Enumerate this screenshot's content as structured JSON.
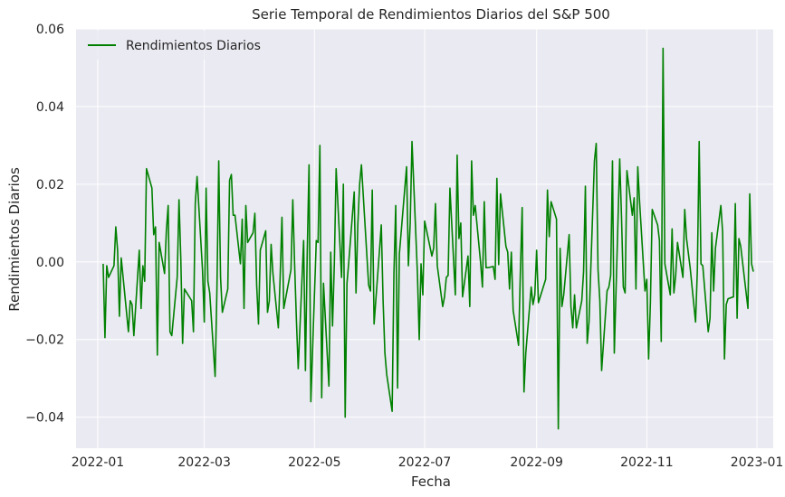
{
  "chart_data": {
    "type": "line",
    "title": "Serie Temporal de Rendimientos Diarios del S&P 500",
    "xlabel": "Fecha",
    "ylabel": "Rendimientos Diarios",
    "xlim": [
      "2021-12-20",
      "2023-01-10"
    ],
    "ylim": [
      -0.048,
      0.06
    ],
    "x_ticks": [
      "2022-01",
      "2022-03",
      "2022-05",
      "2022-07",
      "2022-09",
      "2022-11",
      "2023-01"
    ],
    "x_tick_dates": [
      "2022-01-01",
      "2022-03-01",
      "2022-05-01",
      "2022-07-01",
      "2022-09-01",
      "2022-11-01",
      "2023-01-01"
    ],
    "y_ticks": [
      -0.04,
      -0.02,
      0.0,
      0.02,
      0.04,
      0.06
    ],
    "y_tick_labels": [
      "−0.04",
      "−0.02",
      "0.00",
      "0.02",
      "0.04",
      "0.06"
    ],
    "grid": true,
    "legend_position": "top-left",
    "background_color": "#eaeaf2",
    "grid_color": "#ffffff",
    "series": [
      {
        "name": "Rendimientos Diarios",
        "color": "#008000",
        "points": [
          [
            "2022-01-04",
            -0.0005
          ],
          [
            "2022-01-05",
            -0.0195
          ],
          [
            "2022-01-06",
            -0.001
          ],
          [
            "2022-01-07",
            -0.004
          ],
          [
            "2022-01-10",
            -0.001
          ],
          [
            "2022-01-11",
            0.009
          ],
          [
            "2022-01-12",
            0.003
          ],
          [
            "2022-01-13",
            -0.014
          ],
          [
            "2022-01-14",
            0.001
          ],
          [
            "2022-01-18",
            -0.018
          ],
          [
            "2022-01-19",
            -0.01
          ],
          [
            "2022-01-20",
            -0.011
          ],
          [
            "2022-01-21",
            -0.019
          ],
          [
            "2022-01-24",
            0.003
          ],
          [
            "2022-01-25",
            -0.012
          ],
          [
            "2022-01-26",
            -0.001
          ],
          [
            "2022-01-27",
            -0.005
          ],
          [
            "2022-01-28",
            0.024
          ],
          [
            "2022-01-31",
            0.019
          ],
          [
            "2022-02-01",
            0.007
          ],
          [
            "2022-02-02",
            0.009
          ],
          [
            "2022-02-03",
            -0.024
          ],
          [
            "2022-02-04",
            0.005
          ],
          [
            "2022-02-07",
            -0.003
          ],
          [
            "2022-02-08",
            0.008
          ],
          [
            "2022-02-09",
            0.0145
          ],
          [
            "2022-02-10",
            -0.018
          ],
          [
            "2022-02-11",
            -0.019
          ],
          [
            "2022-02-14",
            -0.004
          ],
          [
            "2022-02-15",
            0.016
          ],
          [
            "2022-02-16",
            0.0008
          ],
          [
            "2022-02-17",
            -0.021
          ],
          [
            "2022-02-18",
            -0.007
          ],
          [
            "2022-02-22",
            -0.01
          ],
          [
            "2022-02-23",
            -0.018
          ],
          [
            "2022-02-24",
            0.015
          ],
          [
            "2022-02-25",
            0.022
          ],
          [
            "2022-02-28",
            -0.002
          ],
          [
            "2022-03-01",
            -0.0155
          ],
          [
            "2022-03-02",
            0.019
          ],
          [
            "2022-03-03",
            -0.005
          ],
          [
            "2022-03-04",
            -0.008
          ],
          [
            "2022-03-07",
            -0.0295
          ],
          [
            "2022-03-08",
            -0.007
          ],
          [
            "2022-03-09",
            0.026
          ],
          [
            "2022-03-10",
            -0.004
          ],
          [
            "2022-03-11",
            -0.013
          ],
          [
            "2022-03-14",
            -0.007
          ],
          [
            "2022-03-15",
            0.021
          ],
          [
            "2022-03-16",
            0.0225
          ],
          [
            "2022-03-17",
            0.012
          ],
          [
            "2022-03-18",
            0.012
          ],
          [
            "2022-03-21",
            -0.0005
          ],
          [
            "2022-03-22",
            0.011
          ],
          [
            "2022-03-23",
            -0.012
          ],
          [
            "2022-03-24",
            0.0145
          ],
          [
            "2022-03-25",
            0.005
          ],
          [
            "2022-03-28",
            0.0075
          ],
          [
            "2022-03-29",
            0.0125
          ],
          [
            "2022-03-30",
            -0.006
          ],
          [
            "2022-03-31",
            -0.016
          ],
          [
            "2022-04-01",
            0.003
          ],
          [
            "2022-04-04",
            0.008
          ],
          [
            "2022-04-05",
            -0.013
          ],
          [
            "2022-04-06",
            -0.01
          ],
          [
            "2022-04-07",
            0.0045
          ],
          [
            "2022-04-08",
            -0.003
          ],
          [
            "2022-04-11",
            -0.017
          ],
          [
            "2022-04-12",
            -0.004
          ],
          [
            "2022-04-13",
            0.0115
          ],
          [
            "2022-04-14",
            -0.012
          ],
          [
            "2022-04-18",
            -0.002
          ],
          [
            "2022-04-19",
            0.016
          ],
          [
            "2022-04-20",
            -0.0005
          ],
          [
            "2022-04-21",
            -0.015
          ],
          [
            "2022-04-22",
            -0.0275
          ],
          [
            "2022-04-25",
            0.0055
          ],
          [
            "2022-04-26",
            -0.028
          ],
          [
            "2022-04-27",
            0.0025
          ],
          [
            "2022-04-28",
            0.025
          ],
          [
            "2022-04-29",
            -0.036
          ],
          [
            "2022-05-02",
            0.0055
          ],
          [
            "2022-05-03",
            0.005
          ],
          [
            "2022-05-04",
            0.03
          ],
          [
            "2022-05-05",
            -0.035
          ],
          [
            "2022-05-06",
            -0.0055
          ],
          [
            "2022-05-09",
            -0.032
          ],
          [
            "2022-05-10",
            0.0025
          ],
          [
            "2022-05-11",
            -0.0165
          ],
          [
            "2022-05-12",
            -0.0005
          ],
          [
            "2022-05-13",
            0.024
          ],
          [
            "2022-05-16",
            -0.004
          ],
          [
            "2022-05-17",
            0.02
          ],
          [
            "2022-05-18",
            -0.04
          ],
          [
            "2022-05-19",
            -0.0055
          ],
          [
            "2022-05-20",
            0.0
          ],
          [
            "2022-05-23",
            0.018
          ],
          [
            "2022-05-24",
            -0.008
          ],
          [
            "2022-05-25",
            0.0095
          ],
          [
            "2022-05-26",
            0.02
          ],
          [
            "2022-05-27",
            0.025
          ],
          [
            "2022-05-31",
            -0.006
          ],
          [
            "2022-06-01",
            -0.0075
          ],
          [
            "2022-06-02",
            0.0185
          ],
          [
            "2022-06-03",
            -0.016
          ],
          [
            "2022-06-06",
            0.003
          ],
          [
            "2022-06-07",
            0.0095
          ],
          [
            "2022-06-08",
            -0.01
          ],
          [
            "2022-06-09",
            -0.0235
          ],
          [
            "2022-06-10",
            -0.029
          ],
          [
            "2022-06-13",
            -0.0385
          ],
          [
            "2022-06-14",
            -0.003
          ],
          [
            "2022-06-15",
            0.0145
          ],
          [
            "2022-06-16",
            -0.0325
          ],
          [
            "2022-06-17",
            0.002
          ],
          [
            "2022-06-21",
            0.0245
          ],
          [
            "2022-06-22",
            -0.001
          ],
          [
            "2022-06-23",
            0.01
          ],
          [
            "2022-06-24",
            0.031
          ],
          [
            "2022-06-27",
            -0.003
          ],
          [
            "2022-06-28",
            -0.02
          ],
          [
            "2022-06-29",
            -0.0005
          ],
          [
            "2022-06-30",
            -0.0085
          ],
          [
            "2022-07-01",
            0.0105
          ],
          [
            "2022-07-05",
            0.0015
          ],
          [
            "2022-07-06",
            0.0035
          ],
          [
            "2022-07-07",
            0.015
          ],
          [
            "2022-07-08",
            -0.001
          ],
          [
            "2022-07-11",
            -0.0115
          ],
          [
            "2022-07-12",
            -0.009
          ],
          [
            "2022-07-13",
            -0.004
          ],
          [
            "2022-07-14",
            -0.0035
          ],
          [
            "2022-07-15",
            0.019
          ],
          [
            "2022-07-18",
            -0.0085
          ],
          [
            "2022-07-19",
            0.0275
          ],
          [
            "2022-07-20",
            0.006
          ],
          [
            "2022-07-21",
            0.01
          ],
          [
            "2022-07-22",
            -0.009
          ],
          [
            "2022-07-25",
            0.0015
          ],
          [
            "2022-07-26",
            -0.0115
          ],
          [
            "2022-07-27",
            0.026
          ],
          [
            "2022-07-28",
            0.012
          ],
          [
            "2022-07-29",
            0.0145
          ],
          [
            "2022-08-01",
            -0.0003
          ],
          [
            "2022-08-02",
            -0.0065
          ],
          [
            "2022-08-03",
            0.0155
          ],
          [
            "2022-08-04",
            -0.0015
          ],
          [
            "2022-08-05",
            -0.0015
          ],
          [
            "2022-08-08",
            -0.0012
          ],
          [
            "2022-08-09",
            -0.0045
          ],
          [
            "2022-08-10",
            0.0215
          ],
          [
            "2022-08-11",
            -0.0007
          ],
          [
            "2022-08-12",
            0.0175
          ],
          [
            "2022-08-15",
            0.004
          ],
          [
            "2022-08-16",
            0.0025
          ],
          [
            "2022-08-17",
            -0.007
          ],
          [
            "2022-08-18",
            0.0025
          ],
          [
            "2022-08-19",
            -0.0125
          ],
          [
            "2022-08-22",
            -0.0215
          ],
          [
            "2022-08-23",
            -0.0025
          ],
          [
            "2022-08-24",
            0.014
          ],
          [
            "2022-08-25",
            -0.0335
          ],
          [
            "2022-08-26",
            -0.0235
          ],
          [
            "2022-08-29",
            -0.0065
          ],
          [
            "2022-08-30",
            -0.011
          ],
          [
            "2022-08-31",
            -0.0085
          ],
          [
            "2022-09-01",
            0.003
          ],
          [
            "2022-09-02",
            -0.0105
          ],
          [
            "2022-09-06",
            -0.0045
          ],
          [
            "2022-09-07",
            0.0185
          ],
          [
            "2022-09-08",
            0.0065
          ],
          [
            "2022-09-09",
            0.0155
          ],
          [
            "2022-09-12",
            0.011
          ],
          [
            "2022-09-13",
            -0.043
          ],
          [
            "2022-09-14",
            0.0035
          ],
          [
            "2022-09-15",
            -0.0115
          ],
          [
            "2022-09-16",
            -0.0085
          ],
          [
            "2022-09-19",
            0.007
          ],
          [
            "2022-09-20",
            -0.0115
          ],
          [
            "2022-09-21",
            -0.017
          ],
          [
            "2022-09-22",
            -0.0085
          ],
          [
            "2022-09-23",
            -0.017
          ],
          [
            "2022-09-26",
            -0.01
          ],
          [
            "2022-09-27",
            -0.0025
          ],
          [
            "2022-09-28",
            0.0195
          ],
          [
            "2022-09-29",
            -0.021
          ],
          [
            "2022-09-30",
            -0.0155
          ],
          [
            "2022-10-03",
            0.026
          ],
          [
            "2022-10-04",
            0.0305
          ],
          [
            "2022-10-05",
            -0.002
          ],
          [
            "2022-10-06",
            -0.01
          ],
          [
            "2022-10-07",
            -0.028
          ],
          [
            "2022-10-10",
            -0.0075
          ],
          [
            "2022-10-11",
            -0.0065
          ],
          [
            "2022-10-12",
            -0.0035
          ],
          [
            "2022-10-13",
            0.026
          ],
          [
            "2022-10-14",
            -0.0235
          ],
          [
            "2022-10-17",
            0.0265
          ],
          [
            "2022-10-18",
            0.0115
          ],
          [
            "2022-10-19",
            -0.0065
          ],
          [
            "2022-10-20",
            -0.008
          ],
          [
            "2022-10-21",
            0.0235
          ],
          [
            "2022-10-24",
            0.012
          ],
          [
            "2022-10-25",
            0.0165
          ],
          [
            "2022-10-26",
            -0.007
          ],
          [
            "2022-10-27",
            0.0245
          ],
          [
            "2022-10-28",
            0.0155
          ],
          [
            "2022-10-31",
            -0.0075
          ],
          [
            "2022-11-01",
            -0.0045
          ],
          [
            "2022-11-02",
            -0.025
          ],
          [
            "2022-11-03",
            -0.0105
          ],
          [
            "2022-11-04",
            0.0135
          ],
          [
            "2022-11-07",
            0.0095
          ],
          [
            "2022-11-08",
            0.0055
          ],
          [
            "2022-11-09",
            -0.0205
          ],
          [
            "2022-11-10",
            0.055
          ],
          [
            "2022-11-11",
            -0.0005
          ],
          [
            "2022-11-14",
            -0.0085
          ],
          [
            "2022-11-15",
            0.0085
          ],
          [
            "2022-11-16",
            -0.008
          ],
          [
            "2022-11-17",
            -0.0035
          ],
          [
            "2022-11-18",
            0.005
          ],
          [
            "2022-11-21",
            -0.004
          ],
          [
            "2022-11-22",
            0.0135
          ],
          [
            "2022-11-23",
            0.006
          ],
          [
            "2022-11-25",
            -0.0015
          ],
          [
            "2022-11-28",
            -0.0155
          ],
          [
            "2022-11-29",
            -0.002
          ],
          [
            "2022-11-30",
            0.031
          ],
          [
            "2022-12-01",
            -0.0005
          ],
          [
            "2022-12-02",
            -0.001
          ],
          [
            "2022-12-05",
            -0.018
          ],
          [
            "2022-12-06",
            -0.0145
          ],
          [
            "2022-12-07",
            0.0075
          ],
          [
            "2022-12-08",
            -0.0075
          ],
          [
            "2022-12-09",
            0.0035
          ],
          [
            "2022-12-12",
            0.0145
          ],
          [
            "2022-12-13",
            0.0075
          ],
          [
            "2022-12-14",
            -0.025
          ],
          [
            "2022-12-15",
            -0.011
          ],
          [
            "2022-12-16",
            -0.0095
          ],
          [
            "2022-12-19",
            -0.009
          ],
          [
            "2022-12-20",
            0.015
          ],
          [
            "2022-12-21",
            -0.0145
          ],
          [
            "2022-12-22",
            0.006
          ],
          [
            "2022-12-23",
            0.004
          ],
          [
            "2022-12-27",
            -0.012
          ],
          [
            "2022-12-28",
            0.0175
          ],
          [
            "2022-12-29",
            -0.0005
          ],
          [
            "2022-12-30",
            -0.0025
          ]
        ]
      }
    ]
  }
}
